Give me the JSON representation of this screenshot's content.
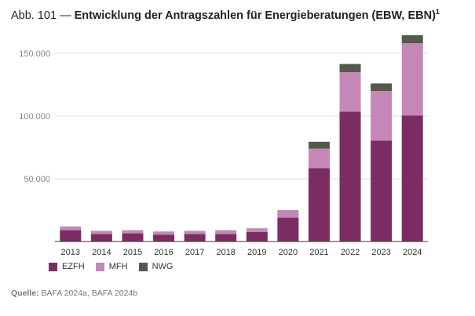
{
  "title": {
    "prefix": "Abb. 101 —",
    "main": "Entwicklung der Antragszahlen für Energieberatungen (EBW, EBN)",
    "footnote": "1"
  },
  "legend": [
    {
      "key": "EZFH",
      "label": "EZFH",
      "color": "#7b2d62"
    },
    {
      "key": "MFH",
      "label": "MFH",
      "color": "#c487b8"
    },
    {
      "key": "NWG",
      "label": "NWG",
      "color": "#56584b"
    }
  ],
  "source": {
    "label": "Quelle:",
    "text": "BAFA 2024a, BAFA 2024b"
  },
  "chart_data": {
    "type": "bar",
    "stacked": true,
    "categories": [
      "2013",
      "2014",
      "2015",
      "2016",
      "2017",
      "2018",
      "2019",
      "2020",
      "2021",
      "2022",
      "2023",
      "2024"
    ],
    "series": [
      {
        "name": "EZFH",
        "color": "#7b2d62",
        "values": [
          9000,
          6000,
          6500,
          5500,
          6000,
          6000,
          7500,
          19000,
          58500,
          103500,
          80500,
          100500
        ]
      },
      {
        "name": "MFH",
        "color": "#c487b8",
        "values": [
          3000,
          2500,
          2500,
          2500,
          2500,
          3000,
          3000,
          6000,
          15500,
          31500,
          39500,
          57500
        ]
      },
      {
        "name": "NWG",
        "color": "#56584b",
        "values": [
          0,
          0,
          0,
          0,
          0,
          0,
          0,
          0,
          5500,
          6500,
          6000,
          6500
        ]
      }
    ],
    "ylim": [
      0,
      165000
    ],
    "yticks": [
      50000,
      100000,
      150000
    ],
    "ytick_labels": [
      "50.000",
      "100.000",
      "150.000"
    ],
    "grid": true,
    "legend_position": "bottom-left"
  }
}
